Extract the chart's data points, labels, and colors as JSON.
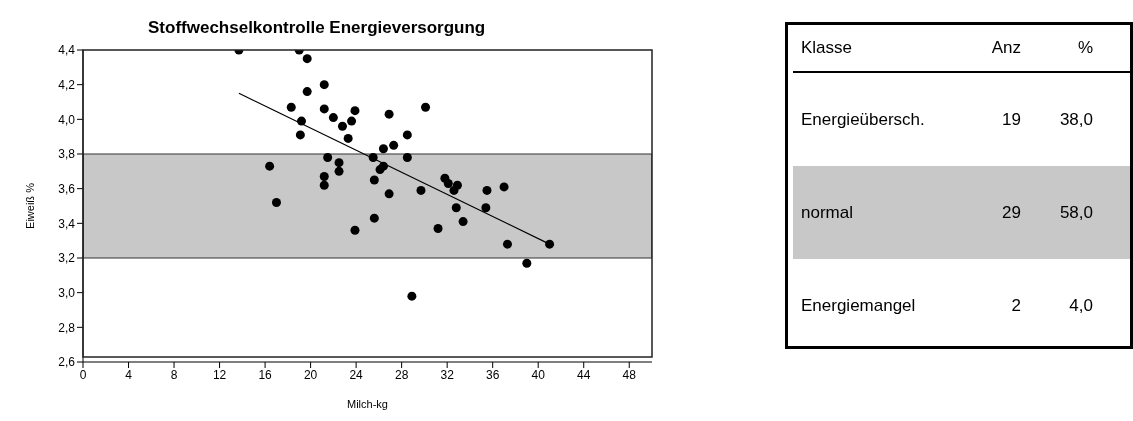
{
  "chart_data": [
    {
      "type": "scatter",
      "title": "Stoffwechselkontrolle Energieversorgung",
      "xlabel": "Milch-kg",
      "ylabel": "Eiweiß %",
      "xlim": [
        0,
        50
      ],
      "xticks": [
        0,
        4,
        8,
        12,
        16,
        20,
        24,
        28,
        32,
        36,
        40,
        44,
        48
      ],
      "ylim": [
        2.6,
        4.4
      ],
      "yticks": [
        {
          "value": 2.6,
          "label": "2,6"
        },
        {
          "value": 2.8,
          "label": "2,8"
        },
        {
          "value": 3.0,
          "label": "3,0"
        },
        {
          "value": 3.2,
          "label": "3,2"
        },
        {
          "value": 3.4,
          "label": "3,4"
        },
        {
          "value": 3.6,
          "label": "3,6"
        },
        {
          "value": 3.8,
          "label": "3,8"
        },
        {
          "value": 4.0,
          "label": "4,0"
        },
        {
          "value": 4.2,
          "label": "4,2"
        },
        {
          "value": 4.4,
          "label": "4,4"
        }
      ],
      "marker": "circle",
      "bands": [
        {
          "axis": "y",
          "from": 3.2,
          "to": 3.8,
          "color": "#c8c8c8"
        }
      ],
      "series": [
        {
          "type": "scatter",
          "color": "#000000",
          "x": [
            13.7,
            19.0,
            19.7,
            19.7,
            21.2,
            18.3,
            19.2,
            19.1,
            21.2,
            22.0,
            22.8,
            23.6,
            23.9,
            23.3,
            16.4,
            17.0,
            21.5,
            22.5,
            22.5,
            21.2,
            21.2,
            23.9,
            25.5,
            25.6,
            25.6,
            26.4,
            26.1,
            26.9,
            26.9,
            26.4,
            27.3,
            28.5,
            28.5,
            30.1,
            29.7,
            31.2,
            31.8,
            32.1,
            32.9,
            32.6,
            32.8,
            33.4,
            35.5,
            35.4,
            37.0,
            37.3,
            41.0,
            39.0,
            28.9
          ],
          "values": [
            4.4,
            4.4,
            4.35,
            4.16,
            4.2,
            4.07,
            3.99,
            3.91,
            4.06,
            4.01,
            3.96,
            3.99,
            4.05,
            3.89,
            3.73,
            3.52,
            3.78,
            3.75,
            3.7,
            3.67,
            3.62,
            3.36,
            3.78,
            3.65,
            3.43,
            3.73,
            3.71,
            3.57,
            4.03,
            3.83,
            3.85,
            3.91,
            3.78,
            4.07,
            3.59,
            3.37,
            3.66,
            3.63,
            3.62,
            3.59,
            3.49,
            3.41,
            3.59,
            3.49,
            3.61,
            3.28,
            3.28,
            3.17,
            2.98
          ]
        },
        {
          "type": "line",
          "color": "#000000",
          "line_style": "solid",
          "marker": "none",
          "x": [
            13.7,
            41.0
          ],
          "values": [
            4.15,
            3.28
          ]
        }
      ]
    },
    {
      "type": "other",
      "annotations": [
        "Klasse",
        "Anz",
        "%",
        "Energieübersch.",
        "19",
        "38,0",
        "normal",
        "29",
        "58,0",
        "Energiemangel",
        "2",
        "4,0"
      ]
    }
  ]
}
